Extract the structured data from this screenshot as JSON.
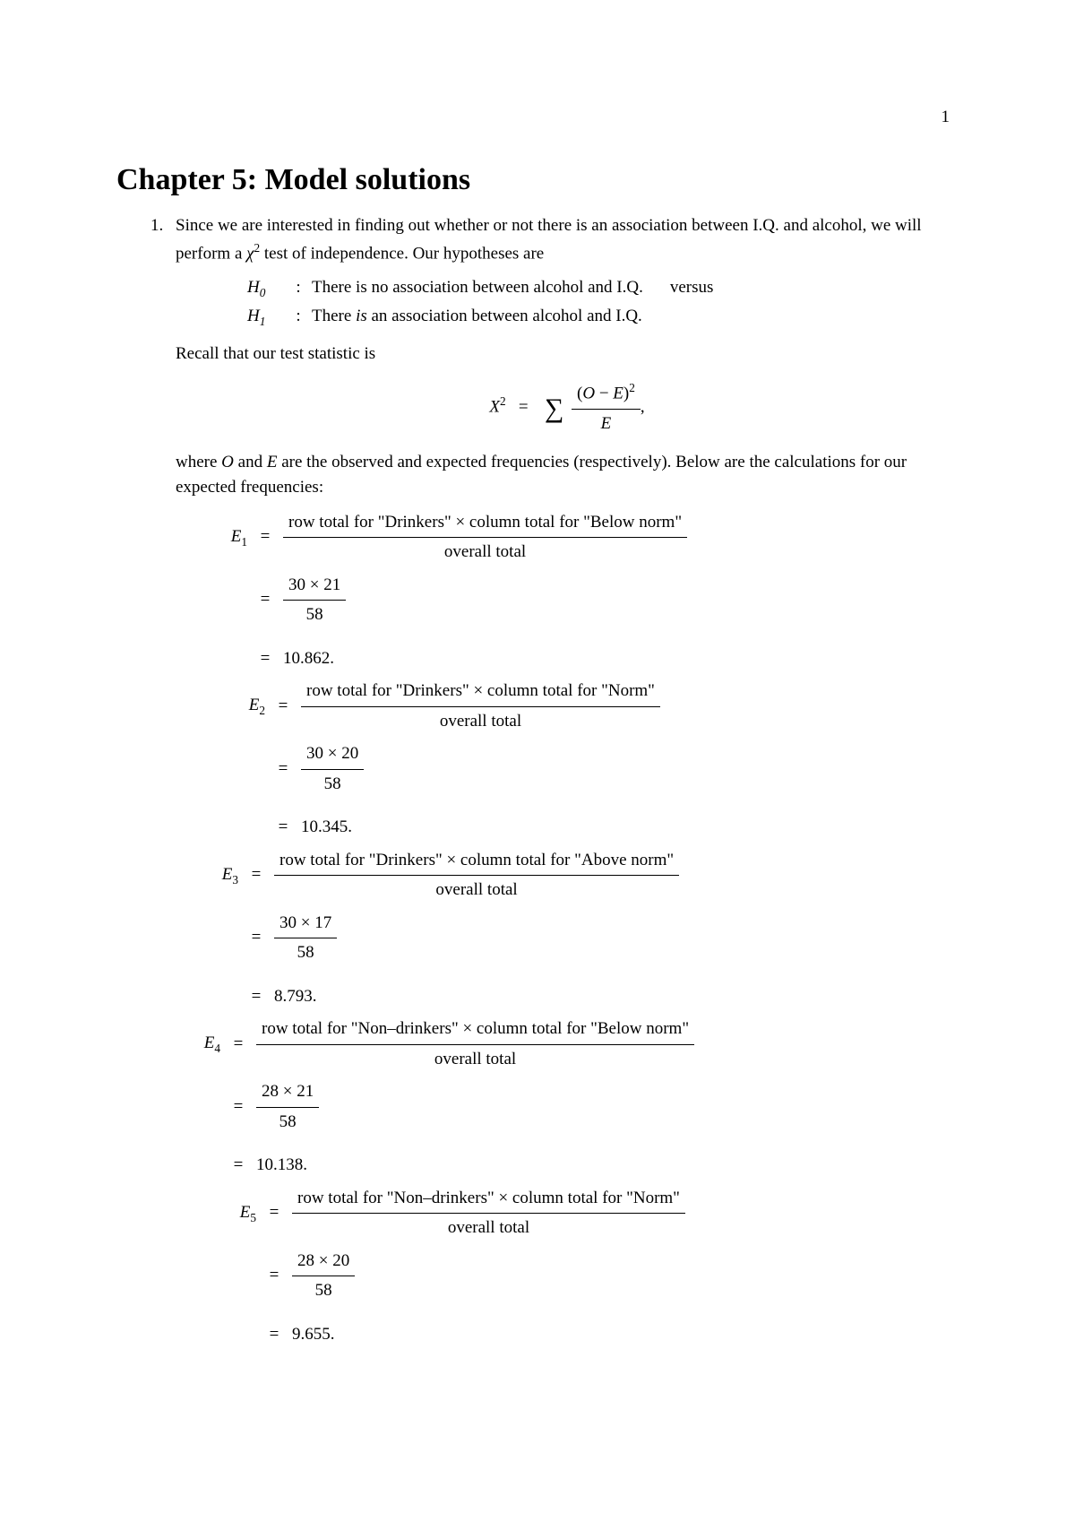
{
  "pageNumber": "1",
  "title": "Chapter 5: Model solutions",
  "itemNumber": "1.",
  "intro1": "Since we are interested in finding out whether or not there is an association between I.Q. and alcohol, we will perform a ",
  "chi": "χ",
  "sq": "2",
  "intro2": " test of independence. Our hypotheses are",
  "h0label": "H",
  "h0sub": "0",
  "h1sub": "1",
  "colon": ":",
  "h0text": "There is no association between alcohol and I.Q.",
  "versus": "versus",
  "h1text_pre": "There ",
  "h1text_is": "is",
  "h1text_post": " an association between alcohol and I.Q.",
  "recall": "Recall that our test statistic is",
  "X": "X",
  "eq": "=",
  "sum": "∑",
  "O": "O",
  "minus": " − ",
  "E": "E",
  "paren_l": "(",
  "paren_r": ")",
  "comma_end": ",",
  "where1": "where ",
  "where2": " and ",
  "where3": " are the observed and expected frequencies (respectively). Below are the calculations for our expected frequencies:",
  "eqs": [
    {
      "label": "E",
      "sub": "1",
      "num": "row total for \"Drinkers\" × column total for \"Below norm\"",
      "den": "overall total",
      "calc_num": "30 × 21",
      "calc_den": "58",
      "result": "10.862."
    },
    {
      "label": "E",
      "sub": "2",
      "num": "row total for \"Drinkers\" × column total for \"Norm\"",
      "den": "overall total",
      "calc_num": "30 × 20",
      "calc_den": "58",
      "result": "10.345."
    },
    {
      "label": "E",
      "sub": "3",
      "num": "row total for \"Drinkers\" × column total for \"Above norm\"",
      "den": "overall total",
      "calc_num": "30 × 17",
      "calc_den": "58",
      "result": "8.793."
    },
    {
      "label": "E",
      "sub": "4",
      "num": "row total for \"Non–drinkers\" × column total for \"Below norm\"",
      "den": "overall total",
      "calc_num": "28 × 21",
      "calc_den": "58",
      "result": "10.138."
    },
    {
      "label": "E",
      "sub": "5",
      "num": "row total for \"Non–drinkers\" × column total for \"Norm\"",
      "den": "overall total",
      "calc_num": "28 × 20",
      "calc_den": "58",
      "result": "9.655."
    }
  ]
}
